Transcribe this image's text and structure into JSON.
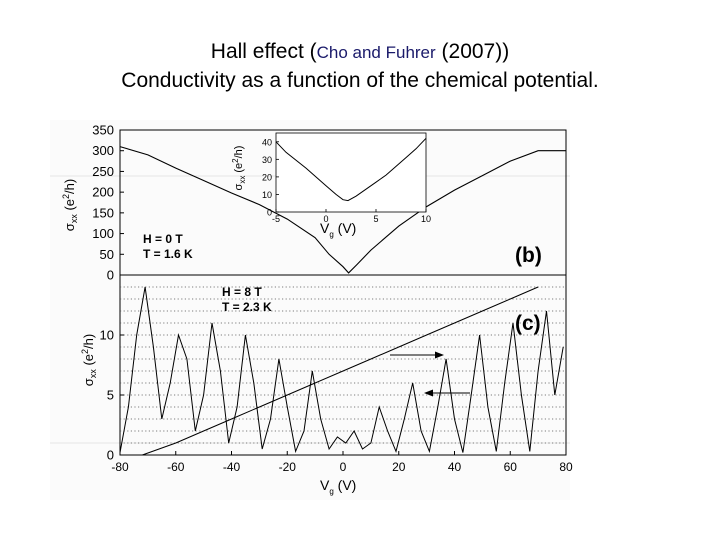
{
  "slide": {
    "title_prefix": "Hall effect (",
    "title_citation": "Cho and Fuhrer",
    "title_year": " (2007))",
    "subtitle": "Conductivity as a function of the chemical potential."
  },
  "figure": {
    "x_label_main": "V",
    "x_label_sub": "g",
    "x_label_unit": " (V)",
    "inset_x_label_main": "V",
    "inset_x_label_sub": "g",
    "inset_x_label_unit": " (V)",
    "panel_b_label": "(b)",
    "panel_c_label": "(c)",
    "panel_b_params": [
      "H = 0 T",
      "T = 1.6 K"
    ],
    "panel_c_params": [
      "H = 8 T",
      "T = 2.3 K"
    ]
  },
  "chart_data": [
    {
      "panel": "b",
      "type": "line",
      "ylabel": "σxx (e²/h)",
      "xlim": [
        -80,
        80
      ],
      "ylim": [
        0,
        350
      ],
      "yticks": [
        0,
        50,
        100,
        150,
        200,
        250,
        300,
        350
      ],
      "series": [
        {
          "x": [
            -80,
            -70,
            -60,
            -50,
            -40,
            -30,
            -20,
            -10,
            -5,
            0,
            2,
            5,
            10,
            20,
            30,
            40,
            50,
            60,
            70,
            80
          ],
          "values": [
            310,
            290,
            258,
            228,
            198,
            170,
            135,
            90,
            50,
            20,
            5,
            25,
            60,
            118,
            165,
            205,
            240,
            275,
            300,
            300
          ]
        }
      ]
    },
    {
      "panel": "b-inset",
      "type": "line",
      "ylabel": "σxx (e²/h)",
      "xlim": [
        -5,
        10
      ],
      "ylim": [
        0,
        45
      ],
      "xticks": [
        -5,
        0,
        5,
        10
      ],
      "yticks": [
        0,
        10,
        20,
        30,
        40
      ],
      "series": [
        {
          "x": [
            -5,
            -4,
            -2,
            0,
            1,
            1.7,
            2.2,
            3,
            4,
            5,
            6,
            7,
            8,
            9,
            10
          ],
          "values": [
            40,
            34,
            25,
            15,
            10,
            7,
            6.5,
            9,
            13,
            17,
            21,
            26,
            31,
            36,
            42
          ]
        }
      ]
    },
    {
      "panel": "c",
      "type": "line",
      "ylabel": "σxx (e²/h)",
      "xlim": [
        -80,
        80
      ],
      "ylim": [
        0,
        15
      ],
      "xticks": [
        -80,
        -60,
        -40,
        -20,
        0,
        20,
        40,
        60,
        80
      ],
      "yticks": [
        0,
        5,
        10
      ],
      "series": [
        {
          "x": [
            -80,
            -77,
            -74,
            -71,
            -68,
            -65,
            -62,
            -59,
            -56,
            -53,
            -50,
            -47,
            -44,
            -41,
            -38,
            -35,
            -32,
            -29,
            -26,
            -23,
            -20,
            -17,
            -14,
            -11,
            -8,
            -5,
            -2,
            1,
            4,
            7,
            10,
            13,
            16,
            19,
            22,
            25,
            28,
            31,
            34,
            37,
            40,
            43,
            46,
            49,
            52,
            55,
            58,
            61,
            64,
            67,
            70,
            73,
            76,
            79
          ],
          "values": [
            0.2,
            4,
            10,
            14,
            9,
            3,
            6,
            10,
            8,
            2,
            5,
            11,
            7,
            1,
            4,
            10,
            6,
            0.5,
            3,
            8,
            4,
            0.3,
            2,
            7,
            3,
            0.5,
            1.5,
            1,
            2,
            0.5,
            1,
            4,
            2,
            0.3,
            3,
            6,
            2,
            0.3,
            4,
            8,
            3,
            0.2,
            5,
            10,
            4,
            0.3,
            6,
            11,
            5,
            0.3,
            7,
            12,
            5,
            9
          ]
        },
        {
          "x": [
            -72,
            -60,
            -50,
            -40,
            -30,
            -20,
            -10,
            0,
            10,
            20,
            30,
            40,
            50,
            60,
            70
          ],
          "values": [
            0,
            1,
            2,
            3,
            4,
            5,
            6,
            7,
            8,
            9,
            10,
            11,
            12,
            13,
            14
          ]
        }
      ]
    }
  ]
}
